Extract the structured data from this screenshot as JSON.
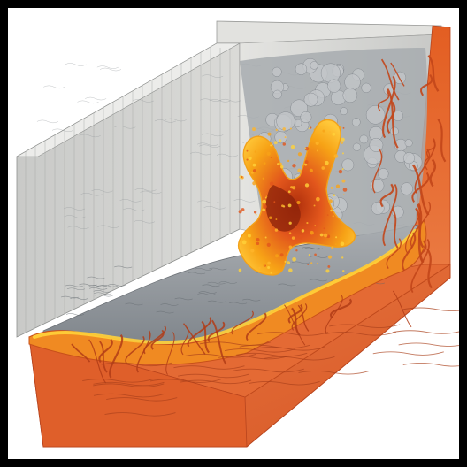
{
  "image": {
    "subject": "isometric-cutaway-block",
    "frame_color": "#000000",
    "background_color": "#fdfdfd",
    "palette": {
      "wall_light": "#d8d8d5",
      "wall_mid": "#b9bab8",
      "wall_shadow": "#9ea09f",
      "water_gray": "#8b8f93",
      "water_light": "#c9cccf",
      "lava_orange": "#e2561c",
      "lava_bright": "#f7a316",
      "lava_yellow": "#ffd23a",
      "lava_deep": "#a8320e",
      "base_orange": "#e26a35",
      "base_dark": "#b8441d"
    }
  }
}
